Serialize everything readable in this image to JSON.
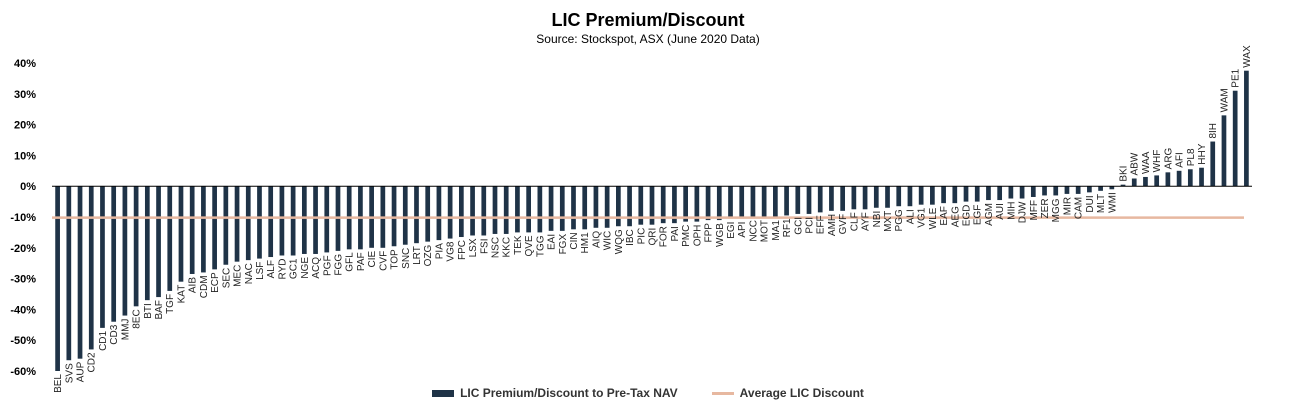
{
  "colors": {
    "bar": "#1f3347",
    "average": "#e7b8a0",
    "axis": "#000000",
    "grid": "#d9d9d9"
  },
  "chart_data": {
    "type": "bar",
    "title": "LIC Premium/Discount",
    "subtitle": "Source: Stockspot, ASX (June 2020 Data)",
    "ylim": [
      -60,
      40
    ],
    "yticks": [
      -60,
      -50,
      -40,
      -30,
      -20,
      -10,
      0,
      10,
      20,
      30,
      40
    ],
    "ytick_labels": [
      "-60%",
      "-50%",
      "-40%",
      "-30%",
      "-20%",
      "-10%",
      "0%",
      "10%",
      "20%",
      "30%",
      "40%"
    ],
    "grid": false,
    "legend_position": "bottom",
    "categories": [
      "BEL",
      "SVS",
      "AUP",
      "CD2",
      "CD1",
      "CD3",
      "MMJ",
      "8EC",
      "BTI",
      "BAF",
      "TGF",
      "KAT",
      "AIB",
      "CDM",
      "ECP",
      "SEC",
      "MEC",
      "NAC",
      "LSF",
      "ALF",
      "RYD",
      "GC1",
      "NGE",
      "ACQ",
      "PGF",
      "FGG",
      "GFL",
      "PAF",
      "CIE",
      "CVF",
      "TOP",
      "SNC",
      "LRT",
      "OZG",
      "PIA",
      "VG8",
      "FPC",
      "LSX",
      "FSI",
      "NSC",
      "KKC",
      "TEK",
      "QVE",
      "TGG",
      "EAI",
      "FGX",
      "CIN",
      "HM1",
      "AIQ",
      "WIC",
      "WQG",
      "IBC",
      "PIC",
      "QRI",
      "FOR",
      "PAI",
      "PMC",
      "OPH",
      "FPP",
      "WGB",
      "EGI",
      "API",
      "NCC",
      "MOT",
      "MA1",
      "RF1",
      "GCI",
      "PCI",
      "EFF",
      "AMH",
      "GVF",
      "CLF",
      "AYF",
      "NBI",
      "MXT",
      "PGG",
      "ALI",
      "VG1",
      "WLE",
      "EAF",
      "AEG",
      "EGD",
      "EGF",
      "AGM",
      "AUI",
      "MIH",
      "DJW",
      "MFF",
      "ZER",
      "MGG",
      "MIR",
      "CAM",
      "DUI",
      "MLT",
      "WMI",
      "BKI",
      "ABW",
      "WAA",
      "WHF",
      "ARG",
      "AFI",
      "PL8",
      "HHY",
      "8IH",
      "WAM",
      "PE1",
      "WAX"
    ],
    "series": [
      {
        "name": "LIC Premium/Discount to Pre-Tax NAV",
        "values": [
          -60,
          -56.5,
          -56,
          -53,
          -46,
          -44,
          -42,
          -39,
          -37,
          -36,
          -34,
          -31,
          -28.5,
          -28,
          -27,
          -25.5,
          -24.5,
          -24,
          -23.5,
          -23,
          -22.5,
          -22.5,
          -22,
          -22,
          -21.5,
          -21,
          -20.5,
          -20.5,
          -20,
          -20,
          -19.5,
          -19,
          -18.5,
          -18,
          -17.5,
          -17,
          -16.5,
          -16,
          -16,
          -15.5,
          -15.5,
          -15,
          -15,
          -15,
          -14.5,
          -14.5,
          -14,
          -14,
          -13.5,
          -13.5,
          -13,
          -13,
          -12.5,
          -12.5,
          -12,
          -12,
          -11.5,
          -11.5,
          -11,
          -11,
          -10.5,
          -10.5,
          -10,
          -10,
          -10,
          -9.5,
          -9,
          -9,
          -8.5,
          -8,
          -8,
          -7.5,
          -7.5,
          -7,
          -7,
          -6.5,
          -6.5,
          -6,
          -6,
          -5.5,
          -5.5,
          -5,
          -5,
          -4.5,
          -4.5,
          -4,
          -4,
          -3.5,
          -3,
          -3,
          -2.5,
          -2.5,
          -2,
          -1.5,
          -1,
          0.5,
          2.5,
          3,
          3.5,
          4.5,
          5,
          5.5,
          6,
          14.5,
          23,
          31,
          37.5
        ]
      },
      {
        "name": "Average LIC Discount",
        "type": "line",
        "value": -10.2
      }
    ]
  }
}
